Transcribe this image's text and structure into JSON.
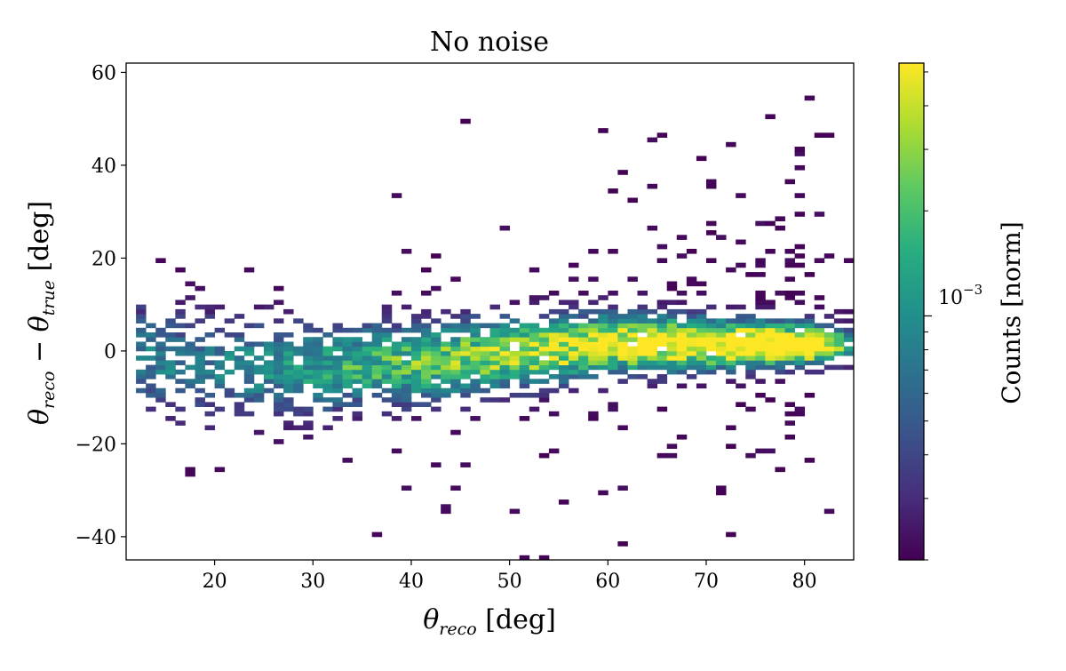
{
  "chart_data": {
    "type": "heatmap",
    "title": "No noise",
    "x_axis": {
      "ticks": [
        20,
        30,
        40,
        50,
        60,
        70,
        80
      ],
      "lim": [
        11,
        85
      ]
    },
    "y_axis": {
      "ticks": [
        -40,
        -20,
        0,
        20,
        40,
        60
      ],
      "lim": [
        -45,
        62
      ]
    },
    "bin_width_x": 1.0,
    "bin_height_y": 1.0,
    "colorbar": {
      "colormap": "viridis",
      "scale": "log",
      "major_tick_label": "10",
      "major_tick_exponent": "−3",
      "major_tick_value": 0.001,
      "range": [
        0.0002,
        0.0053
      ],
      "minor_ticks": [
        0.0002,
        0.0003,
        0.0004,
        0.0005,
        0.0006,
        0.0007,
        0.0008,
        0.0009,
        0.002,
        0.003,
        0.004,
        0.005
      ]
    },
    "ridge": {
      "description": "Density concentrated along y≈0 with spread narrowing toward high x; peak near x 55–75.",
      "points": [
        [
          13,
          -2
        ],
        [
          20,
          -4
        ],
        [
          30,
          -4
        ],
        [
          40,
          -3
        ],
        [
          50,
          -1
        ],
        [
          60,
          1
        ],
        [
          70,
          1
        ],
        [
          80,
          1
        ],
        [
          84,
          1
        ]
      ]
    },
    "annotations": [
      {
        "label": "x-axis",
        "base": "θ",
        "sub": "reco",
        "suffix": " [deg]"
      },
      {
        "label": "y-axis",
        "base1": "θ",
        "sub1": "reco",
        "mid": " − ",
        "base2": "θ",
        "sub2": "true",
        "suffix": " [deg]"
      },
      {
        "label": "colorbar",
        "text": "Counts [norm]"
      }
    ]
  }
}
